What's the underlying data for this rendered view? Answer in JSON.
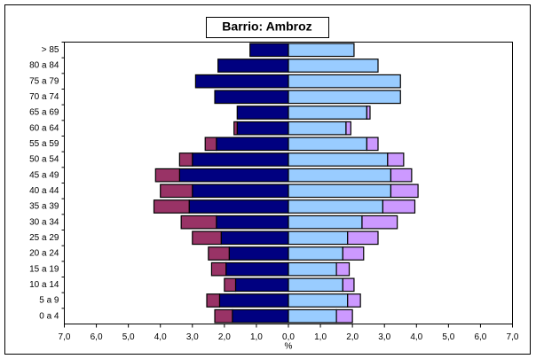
{
  "chart_data": {
    "type": "pyramid",
    "title": "Barrio: Ambroz",
    "x_label": "%",
    "categories": [
      "> 85",
      "80 a 84",
      "75 a 79",
      "70 a 74",
      "65 a 69",
      "60 a 64",
      "55 a 59",
      "50 a 54",
      "45 a 49",
      "40 a 44",
      "35 a 39",
      "30 a 34",
      "25 a 29",
      "20 a 24",
      "15 a 19",
      "10 a 14",
      "5 a 9",
      "0 a 4"
    ],
    "series": [
      {
        "color": "#000080",
        "values": [
          -1.2,
          -2.2,
          -2.9,
          -2.3,
          -1.6,
          -1.6,
          -2.25,
          -3.0,
          -3.4,
          -3.0,
          -3.1,
          -2.25,
          -2.1,
          -1.85,
          -1.95,
          -1.65,
          -2.15,
          -1.75
        ]
      },
      {
        "color": "#993366",
        "values": [
          0,
          0,
          0,
          0,
          0,
          -0.1,
          -0.35,
          -0.4,
          -0.75,
          -1.0,
          -1.1,
          -1.1,
          -0.9,
          -0.65,
          -0.45,
          -0.35,
          -0.4,
          -0.55
        ]
      },
      {
        "color": "#99ccff",
        "values": [
          2.05,
          2.8,
          3.5,
          3.5,
          2.45,
          1.8,
          2.45,
          3.1,
          3.2,
          3.2,
          2.95,
          2.3,
          1.85,
          1.7,
          1.5,
          1.7,
          1.85,
          1.5
        ]
      },
      {
        "color": "#cc99ff",
        "values": [
          0,
          0,
          0,
          0,
          0.1,
          0.15,
          0.35,
          0.5,
          0.65,
          0.85,
          1.0,
          1.1,
          0.95,
          0.65,
          0.4,
          0.35,
          0.4,
          0.5
        ]
      }
    ],
    "xlim": [
      -7,
      7
    ],
    "xticks": [
      {
        "value": -7,
        "label": "7,0"
      },
      {
        "value": -6,
        "label": "6,0"
      },
      {
        "value": -5,
        "label": "5,0"
      },
      {
        "value": -4,
        "label": "4,0"
      },
      {
        "value": -3,
        "label": "3,0"
      },
      {
        "value": -2,
        "label": "2,0"
      },
      {
        "value": -1,
        "label": "1,0"
      },
      {
        "value": 0,
        "label": "0,0"
      },
      {
        "value": 1,
        "label": "1,0"
      },
      {
        "value": 2,
        "label": "2,0"
      },
      {
        "value": 3,
        "label": "3,0"
      },
      {
        "value": 4,
        "label": "4,0"
      },
      {
        "value": 5,
        "label": "5,0"
      },
      {
        "value": 6,
        "label": "6,0"
      },
      {
        "value": 7,
        "label": "7,0"
      }
    ]
  }
}
